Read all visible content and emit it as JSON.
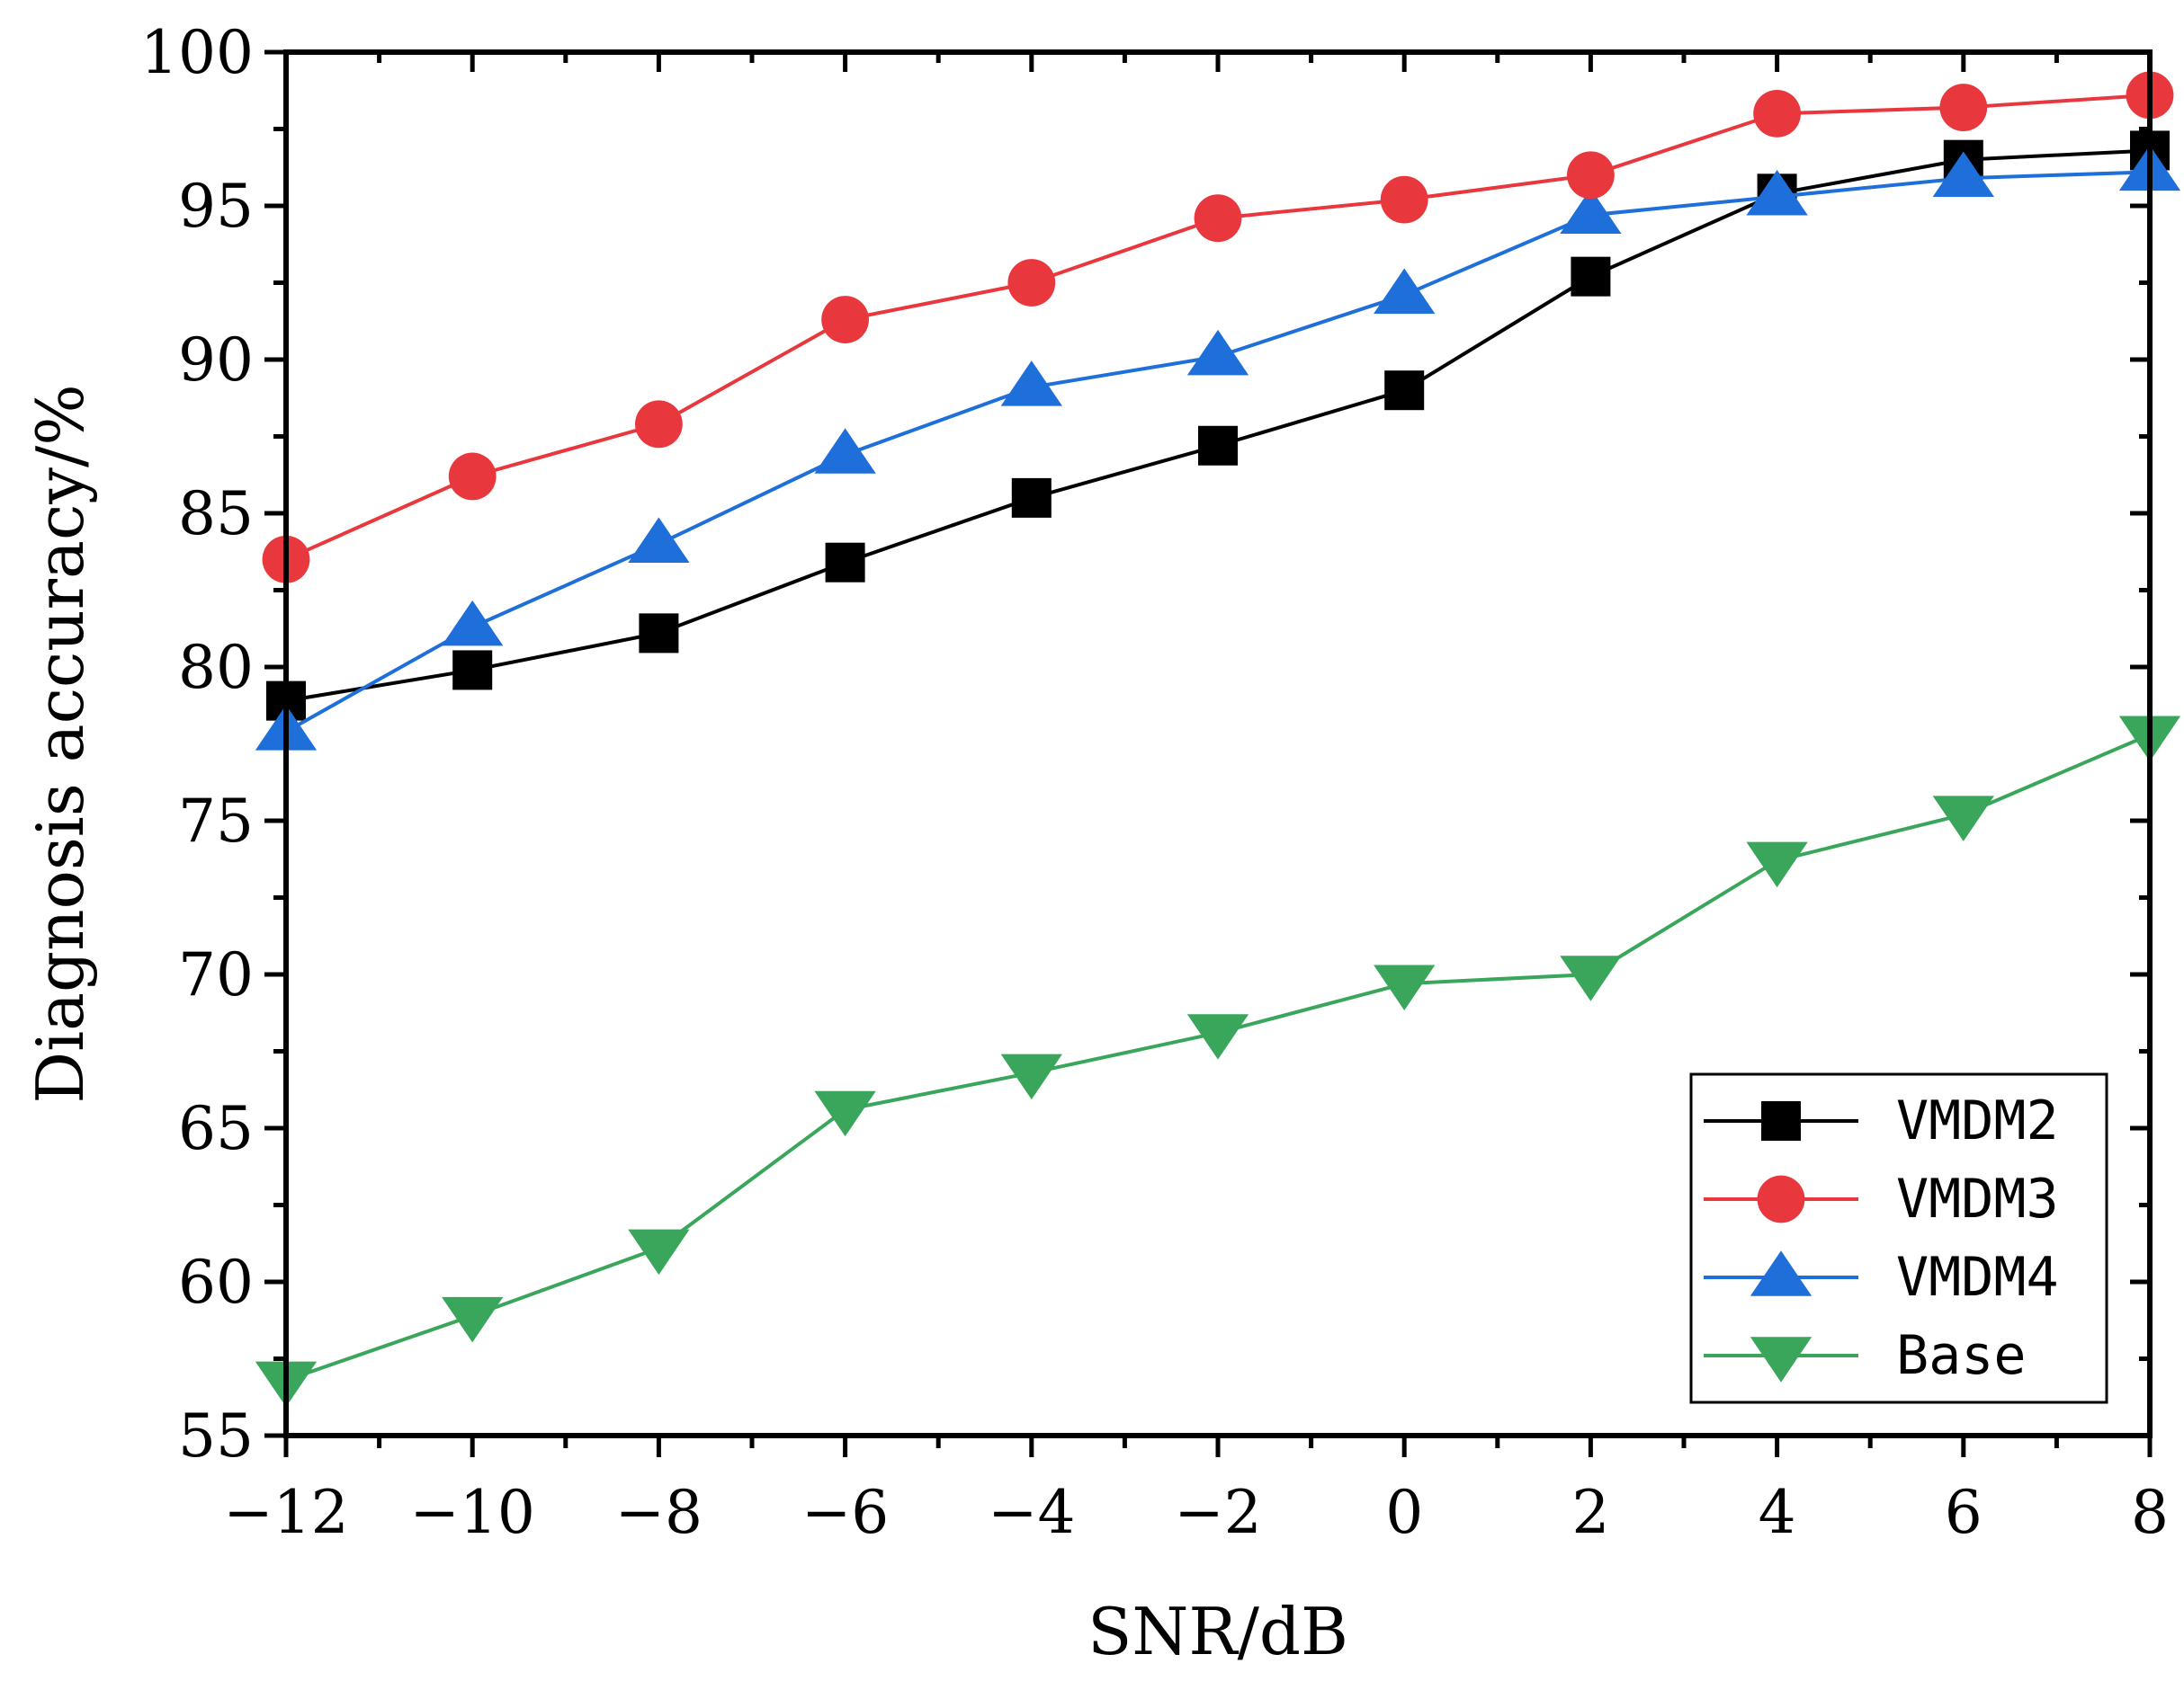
{
  "chart_data": {
    "type": "line",
    "title": "",
    "xlabel": "SNR/dB",
    "ylabel": "Diagnosis accuracy/%",
    "x": [
      -12,
      -10,
      -8,
      -6,
      -4,
      -2,
      0,
      2,
      4,
      6,
      8
    ],
    "x_tick_labels": [
      "−12",
      "−10",
      "−8",
      "−6",
      "−4",
      "−2",
      "0",
      "2",
      "4",
      "6",
      "8"
    ],
    "y_ticks": [
      55,
      60,
      65,
      70,
      75,
      80,
      85,
      90,
      95,
      100
    ],
    "xlim": [
      -12,
      8
    ],
    "ylim": [
      55,
      100
    ],
    "grid": false,
    "legend_position": "bottom-right",
    "series": [
      {
        "name": "VMDM2",
        "color": "#000000",
        "marker": "square",
        "values": [
          78.9,
          79.9,
          81.1,
          83.4,
          85.5,
          87.2,
          89.0,
          92.7,
          95.4,
          96.5,
          96.8
        ]
      },
      {
        "name": "VMDM3",
        "color": "#e8383d",
        "marker": "circle",
        "values": [
          83.5,
          86.2,
          87.9,
          91.3,
          92.5,
          94.6,
          95.2,
          96.0,
          98.0,
          98.2,
          98.6
        ]
      },
      {
        "name": "VMDM4",
        "color": "#1e6fd9",
        "marker": "triangle-up",
        "values": [
          77.9,
          81.3,
          84.0,
          86.9,
          89.1,
          90.1,
          92.1,
          94.7,
          95.3,
          95.9,
          96.1
        ]
      },
      {
        "name": "Base",
        "color": "#3aa65b",
        "marker": "triangle-down",
        "values": [
          56.8,
          58.9,
          61.1,
          65.6,
          66.8,
          68.1,
          69.7,
          70.0,
          73.7,
          75.2,
          77.8
        ]
      }
    ]
  }
}
